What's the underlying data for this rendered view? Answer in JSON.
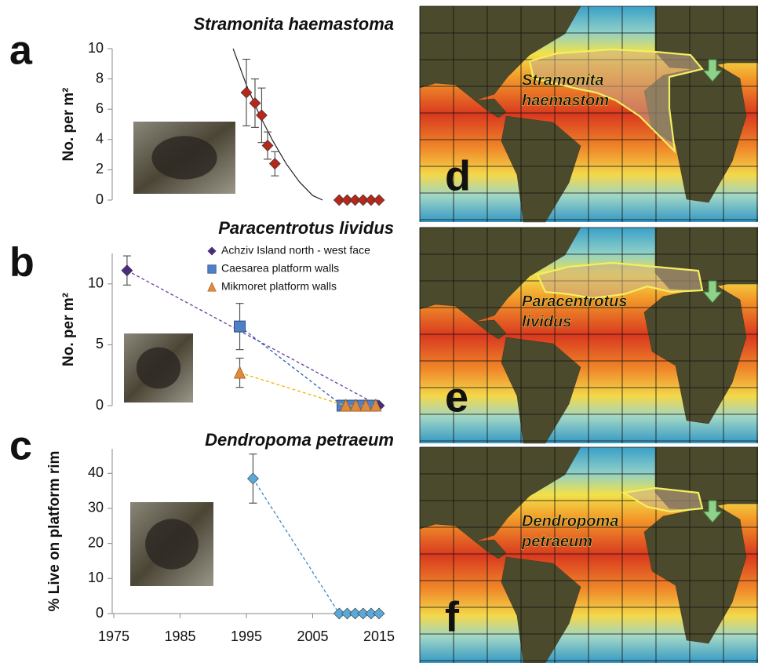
{
  "chart_data": [
    {
      "type": "scatter",
      "panel": "a",
      "title": "Stramonita haemastoma",
      "ylabel": "No. per m²",
      "xlim": [
        1975,
        2015
      ],
      "ylim": [
        0,
        10
      ],
      "yticks": [
        0,
        2,
        4,
        6,
        8,
        10
      ],
      "series": [
        {
          "color": "#b5281c",
          "marker": "diamond",
          "x": [
            1995,
            1996.3,
            1997.3,
            1998.2,
            1999.3,
            2009,
            2010.2,
            2011.4,
            2012.6,
            2013.8,
            2015
          ],
          "values": [
            7.1,
            6.4,
            5.6,
            3.6,
            2.4,
            0,
            0,
            0,
            0,
            0,
            0
          ],
          "errors": [
            2.2,
            1.6,
            1.8,
            0.9,
            0.8,
            null,
            null,
            null,
            null,
            null,
            null
          ]
        }
      ],
      "fit": {
        "color": "#222222",
        "x": [
          1993,
          1995,
          1997,
          1999,
          2001,
          2003,
          2005,
          2006.5
        ],
        "values": [
          10,
          7.6,
          5.6,
          3.9,
          2.4,
          1.2,
          0.3,
          0
        ]
      }
    },
    {
      "type": "scatter",
      "panel": "b",
      "title": "Paracentrotus lividus",
      "ylabel": "No. per m²",
      "xlim": [
        1975,
        2015
      ],
      "ylim": [
        0,
        12.5
      ],
      "yticks": [
        0,
        5,
        10
      ],
      "series": [
        {
          "name": "Achziv Island north - west face",
          "color": "#4b2a7f",
          "line_color": "#6a3d9a",
          "marker": "diamond",
          "x": [
            1977,
            2015
          ],
          "values": [
            11.1,
            0
          ],
          "errors": [
            1.2,
            null
          ]
        },
        {
          "name": "Caesarea platform walls",
          "color": "#4f7fc4",
          "line_color": "#2f5fb0",
          "marker": "square",
          "x": [
            1994,
            2009.5,
            2011,
            2012.5,
            2014
          ],
          "values": [
            6.5,
            0,
            0,
            0,
            0
          ],
          "errors": [
            1.9,
            null,
            null,
            null,
            null
          ]
        },
        {
          "name": "Mikmoret platform walls",
          "color": "#e08a3c",
          "line_color": "#f0b400",
          "marker": "triangle",
          "x": [
            1994,
            2010,
            2011.5,
            2013,
            2014.5
          ],
          "values": [
            2.7,
            0,
            0,
            0,
            0
          ],
          "errors": [
            1.2,
            null,
            null,
            null,
            null
          ]
        }
      ]
    },
    {
      "type": "scatter",
      "panel": "c",
      "title": "Dendropoma petraeum",
      "ylabel": "% Live on platform rim",
      "xlim": [
        1975,
        2015
      ],
      "ylim": [
        0,
        47
      ],
      "yticks": [
        0,
        10,
        20,
        30,
        40
      ],
      "xticks": [
        1975,
        1985,
        1995,
        2005,
        2015
      ],
      "series": [
        {
          "color": "#5aa9d9",
          "line_color": "#3a8ac8",
          "marker": "diamond",
          "x": [
            1996,
            2009,
            2010.2,
            2011.4,
            2012.6,
            2013.8,
            2015
          ],
          "values": [
            38.5,
            0,
            0,
            0,
            0,
            0,
            0
          ],
          "errors": [
            7,
            null,
            null,
            null,
            null,
            null,
            null
          ]
        }
      ]
    }
  ],
  "maps": [
    {
      "panel": "d",
      "label_lines": [
        "Stramonita",
        "haemastom"
      ]
    },
    {
      "panel": "e",
      "label_lines": [
        "Paracentrotus",
        "lividus"
      ]
    },
    {
      "panel": "f",
      "label_lines": [
        "Dendropoma",
        "petraeum"
      ]
    }
  ]
}
